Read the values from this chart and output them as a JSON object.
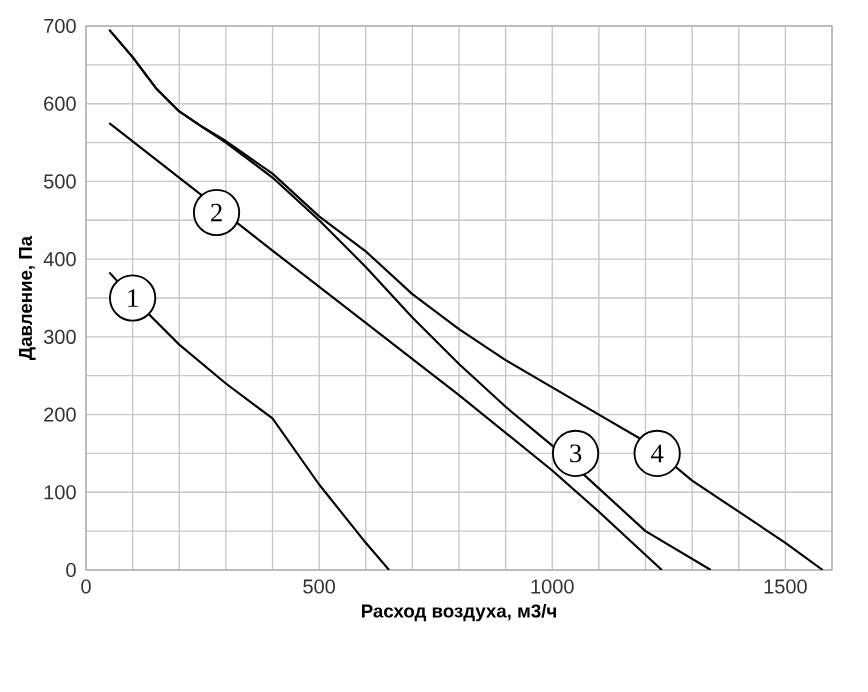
{
  "chart_data": {
    "type": "line",
    "xlabel": "Расход воздуха, м3/ч",
    "ylabel": "Давление, Па",
    "xlim": [
      0,
      1600
    ],
    "ylim": [
      0,
      700
    ],
    "xticks": [
      0,
      {
        "value": 100,
        "label": null
      },
      {
        "value": 200,
        "label": null
      },
      {
        "value": 300,
        "label": null
      },
      {
        "value": 400,
        "label": null
      },
      500,
      {
        "value": 600,
        "label": null
      },
      {
        "value": 700,
        "label": null
      },
      {
        "value": 800,
        "label": null
      },
      {
        "value": 900,
        "label": null
      },
      1000,
      {
        "value": 1100,
        "label": null
      },
      {
        "value": 1200,
        "label": null
      },
      {
        "value": 1300,
        "label": null
      },
      {
        "value": 1400,
        "label": null
      },
      1500,
      {
        "value": 1600,
        "label": null
      }
    ],
    "yticks": [
      0,
      {
        "value": 50,
        "label": null
      },
      100,
      {
        "value": 150,
        "label": null
      },
      200,
      {
        "value": 250,
        "label": null
      },
      300,
      {
        "value": 350,
        "label": null
      },
      400,
      {
        "value": 450,
        "label": null
      },
      500,
      {
        "value": 550,
        "label": null
      },
      600,
      {
        "value": 650,
        "label": null
      },
      700
    ],
    "grid": true,
    "marker": "none",
    "line_style": "solid",
    "series": [
      {
        "color": "#000000",
        "x": [
          50,
          100,
          200,
          300,
          400,
          500,
          600,
          650
        ],
        "values": [
          383,
          350,
          290,
          240,
          195,
          110,
          35,
          0
        ]
      },
      {
        "color": "#000000",
        "x": [
          50,
          400,
          600,
          800,
          1000,
          1100,
          1235
        ],
        "values": [
          575,
          411,
          318,
          225,
          128,
          75,
          0
        ]
      },
      {
        "color": "#000000",
        "x": [
          50,
          100,
          150,
          200,
          250,
          300,
          400,
          500,
          600,
          700,
          800,
          900,
          1000,
          1100,
          1200,
          1340
        ],
        "values": [
          695,
          660,
          620,
          590,
          570,
          550,
          505,
          450,
          390,
          325,
          265,
          210,
          160,
          105,
          50,
          0
        ]
      },
      {
        "color": "#000000",
        "x": [
          50,
          100,
          150,
          200,
          250,
          300,
          400,
          500,
          600,
          700,
          800,
          900,
          1000,
          1100,
          1200,
          1300,
          1400,
          1500,
          1580
        ],
        "values": [
          695,
          660,
          620,
          590,
          570,
          552,
          510,
          455,
          410,
          355,
          310,
          270,
          235,
          200,
          165,
          115,
          75,
          35,
          0
        ]
      }
    ],
    "annotations": [
      {
        "text": "1",
        "x": 100,
        "y": 350
      },
      {
        "text": "2",
        "x": 280,
        "y": 460
      },
      {
        "text": "3",
        "x": 1050,
        "y": 150
      },
      {
        "text": "4",
        "x": 1225,
        "y": 150
      }
    ]
  }
}
